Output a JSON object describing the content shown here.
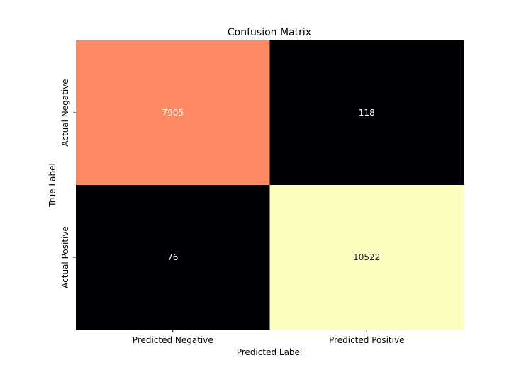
{
  "chart_data": {
    "type": "heatmap",
    "title": "Confusion Matrix",
    "xlabel": "Predicted Label",
    "ylabel": "True Label",
    "x_categories": [
      "Predicted Negative",
      "Predicted Positive"
    ],
    "y_categories": [
      "Actual Negative",
      "Actual Positive"
    ],
    "values": [
      [
        7905,
        118
      ],
      [
        76,
        10522
      ]
    ],
    "colormap": "magma",
    "colorbar": false,
    "cell_colors": [
      [
        "#fc8961",
        "#000004"
      ],
      [
        "#000004",
        "#fcfdbf"
      ]
    ],
    "cell_text_colors": [
      [
        "#ffffff",
        "#ffffff"
      ],
      [
        "#ffffff",
        "#262626"
      ]
    ]
  }
}
